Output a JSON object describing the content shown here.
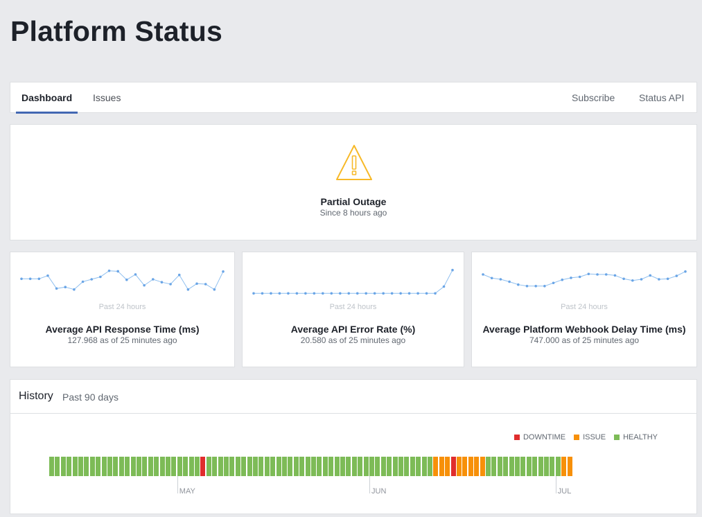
{
  "page_title": "Platform Status",
  "nav": {
    "tabs": [
      "Dashboard",
      "Issues"
    ],
    "active_tab": "Dashboard",
    "links": [
      "Subscribe",
      "Status API"
    ]
  },
  "status": {
    "title": "Partial Outage",
    "since": "Since 8 hours ago",
    "icon": "warning-icon",
    "color": "#f7b928"
  },
  "metrics": [
    {
      "period": "Past 24 hours",
      "title": "Average API Response Time (ms)",
      "value_text": "127.968 as of 25 minutes ago",
      "spark": [
        0.62,
        0.62,
        0.62,
        0.75,
        0.22,
        0.28,
        0.18,
        0.5,
        0.6,
        0.7,
        0.95,
        0.93,
        0.58,
        0.8,
        0.35,
        0.6,
        0.48,
        0.4,
        0.78,
        0.18,
        0.42,
        0.4,
        0.18,
        0.92
      ]
    },
    {
      "period": "Past 24 hours",
      "title": "Average API Error Rate (%)",
      "value_text": "20.580 as of 25 minutes ago",
      "spark": [
        0.02,
        0.02,
        0.02,
        0.02,
        0.02,
        0.02,
        0.02,
        0.02,
        0.02,
        0.02,
        0.02,
        0.02,
        0.02,
        0.02,
        0.02,
        0.02,
        0.02,
        0.02,
        0.02,
        0.02,
        0.02,
        0.02,
        0.3,
        0.98
      ]
    },
    {
      "period": "Past 24 hours",
      "title": "Average Platform Webhook Delay Time (ms)",
      "value_text": "747.000 as of 25 minutes ago",
      "spark": [
        0.8,
        0.65,
        0.6,
        0.5,
        0.38,
        0.32,
        0.32,
        0.32,
        0.45,
        0.58,
        0.66,
        0.7,
        0.82,
        0.8,
        0.8,
        0.76,
        0.62,
        0.55,
        0.6,
        0.76,
        0.6,
        0.62,
        0.74,
        0.92
      ]
    }
  ],
  "history": {
    "title": "History",
    "subtitle": "Past 90 days",
    "legend": [
      {
        "label": "DOWNTIME",
        "color": "#e02d2d"
      },
      {
        "label": "ISSUE",
        "color": "#f79009"
      },
      {
        "label": "HEALTHY",
        "color": "#7dbb57"
      }
    ],
    "days": [
      "healthy",
      "healthy",
      "healthy",
      "healthy",
      "healthy",
      "healthy",
      "healthy",
      "healthy",
      "healthy",
      "healthy",
      "healthy",
      "healthy",
      "healthy",
      "healthy",
      "healthy",
      "healthy",
      "healthy",
      "healthy",
      "healthy",
      "healthy",
      "healthy",
      "healthy",
      "healthy",
      "healthy",
      "healthy",
      "healthy",
      "downtime",
      "healthy",
      "healthy",
      "healthy",
      "healthy",
      "healthy",
      "healthy",
      "healthy",
      "healthy",
      "healthy",
      "healthy",
      "healthy",
      "healthy",
      "healthy",
      "healthy",
      "healthy",
      "healthy",
      "healthy",
      "healthy",
      "healthy",
      "healthy",
      "healthy",
      "healthy",
      "healthy",
      "healthy",
      "healthy",
      "healthy",
      "healthy",
      "healthy",
      "healthy",
      "healthy",
      "healthy",
      "healthy",
      "healthy",
      "healthy",
      "healthy",
      "healthy",
      "healthy",
      "healthy",
      "healthy",
      "issue",
      "issue",
      "issue",
      "downtime",
      "issue",
      "issue",
      "issue",
      "issue",
      "issue",
      "healthy",
      "healthy",
      "healthy",
      "healthy",
      "healthy",
      "healthy",
      "healthy",
      "healthy",
      "healthy",
      "healthy",
      "healthy",
      "healthy",
      "healthy",
      "issue",
      "issue"
    ],
    "months": [
      {
        "label": "MAY",
        "day_index": 22
      },
      {
        "label": "JUN",
        "day_index": 55
      },
      {
        "label": "JUL",
        "day_index": 87
      }
    ]
  }
}
